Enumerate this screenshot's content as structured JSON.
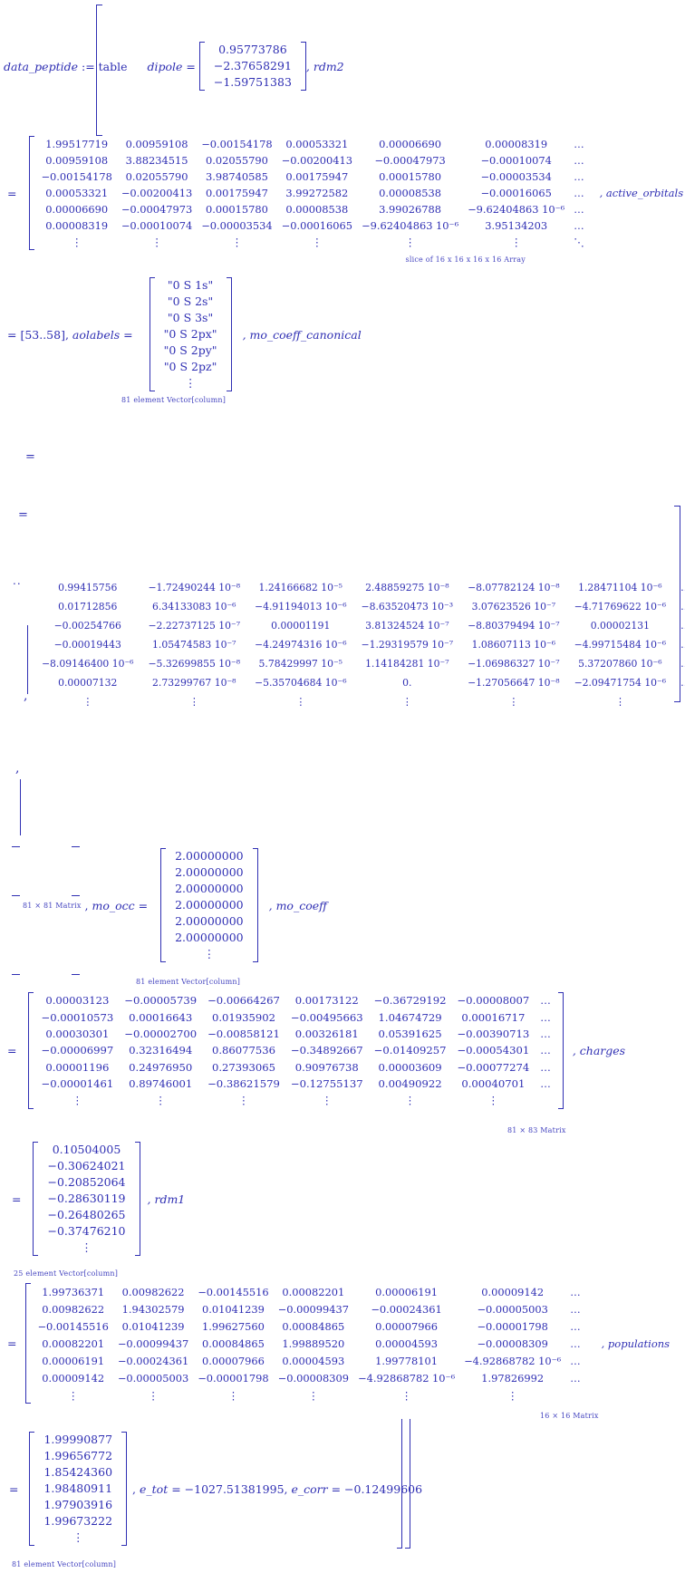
{
  "colors": {
    "ink": "#2f2fb3",
    "caption": "#4646c0"
  },
  "deco": {
    "eq": "=",
    "comma": ",",
    "lead_dots": ".."
  },
  "header": {
    "name": "data_peptide",
    "assign": " := table"
  },
  "dipole": {
    "label": "dipole = ",
    "values": [
      [
        "0.95773786"
      ],
      [
        "−2.37658291"
      ],
      [
        "−1.59751383"
      ]
    ],
    "after": ", rdm2"
  },
  "rdm2_slice": {
    "rows": [
      [
        "1.99517719",
        "0.00959108",
        "−0.00154178",
        "0.00053321",
        "0.00006690",
        "0.00008319",
        "…"
      ],
      [
        "0.00959108",
        "3.88234515",
        "0.02055790",
        "−0.00200413",
        "−0.00047973",
        "−0.00010074",
        "…"
      ],
      [
        "−0.00154178",
        "0.02055790",
        "3.98740585",
        "0.00175947",
        "0.00015780",
        "−0.00003534",
        "…"
      ],
      [
        "0.00053321",
        "−0.00200413",
        "0.00175947",
        "3.99272582",
        "0.00008538",
        "−0.00016065",
        "…"
      ],
      [
        "0.00006690",
        "−0.00047973",
        "0.00015780",
        "0.00008538",
        "3.99026788",
        "−9.62404863 10⁻⁶",
        "…"
      ],
      [
        "0.00008319",
        "−0.00010074",
        "−0.00003534",
        "−0.00016065",
        "−9.62404863 10⁻⁶",
        "3.95134203",
        "…"
      ],
      [
        "⋮",
        "⋮",
        "⋮",
        "⋮",
        "⋮",
        "⋮",
        "⋱"
      ]
    ],
    "label": ", active_orbitals",
    "caption": "slice of 16 x 16 x 16 x 16 Array"
  },
  "aolabels": {
    "prefix": "= [53..58], ",
    "name": "aolabels",
    "eq": " = ",
    "values": [
      [
        "\"0 S 1s\""
      ],
      [
        "\"0 S 2s\""
      ],
      [
        "\"0 S 3s\""
      ],
      [
        "\"0 S 2px\""
      ],
      [
        "\"0 S 2py\""
      ],
      [
        "\"0 S 2pz\""
      ],
      [
        "⋮"
      ]
    ],
    "caption": "81 element Vector[column]",
    "after": ", mo_coeff_canonical"
  },
  "mo_coeff_canonical": {
    "rows": [
      [
        "0.99415756",
        "−1.72490244 10⁻⁸",
        "1.24166682 10⁻⁵",
        "2.48859275 10⁻⁸",
        "−8.07782124 10⁻⁸",
        "1.28471104 10⁻⁶",
        "…"
      ],
      [
        "0.01712856",
        "6.34133083 10⁻⁶",
        "−4.91194013 10⁻⁶",
        "−8.63520473 10⁻³",
        "3.07623526 10⁻⁷",
        "−4.71769622 10⁻⁶",
        "…"
      ],
      [
        "−0.00254766",
        "−2.22737125 10⁻⁷",
        "0.00001191",
        "3.81324524 10⁻⁷",
        "−8.80379494 10⁻⁷",
        "0.00002131",
        "…"
      ],
      [
        "−0.00019443",
        "1.05474583 10⁻⁷",
        "−4.24974316 10⁻⁶",
        "−1.29319579 10⁻⁷",
        "1.08607113 10⁻⁶",
        "−4.99715484 10⁻⁶",
        "…"
      ],
      [
        "−8.09146400 10⁻⁶",
        "−5.32699855 10⁻⁸",
        "5.78429997 10⁻⁵",
        "1.14184281 10⁻⁷",
        "−1.06986327 10⁻⁷",
        "5.37207860 10⁻⁶",
        "…"
      ],
      [
        "0.00007132",
        "2.73299767 10⁻⁸",
        "−5.35704684 10⁻⁶",
        "0.",
        "−1.27056647 10⁻⁸",
        "−2.09471754 10⁻⁶",
        "…"
      ],
      [
        "⋮",
        "⋮",
        "⋮",
        "⋮",
        "⋮",
        "⋮",
        ""
      ]
    ]
  },
  "mo_occ": {
    "size_caption": "81 × 81 Matrix",
    "pre": " , ",
    "name": "mo_occ",
    "eq": " = ",
    "values": [
      [
        "2.00000000"
      ],
      [
        "2.00000000"
      ],
      [
        "2.00000000"
      ],
      [
        "2.00000000"
      ],
      [
        "2.00000000"
      ],
      [
        "2.00000000"
      ],
      [
        "⋮"
      ]
    ],
    "caption": "81 element Vector[column]",
    "after": ", mo_coeff"
  },
  "charges": {
    "rows": [
      [
        "0.00003123",
        "−0.00005739",
        "−0.00664267",
        "0.00173122",
        "−0.36729192",
        "−0.00008007",
        "…"
      ],
      [
        "−0.00010573",
        "0.00016643",
        "0.01935902",
        "−0.00495663",
        "1.04674729",
        "0.00016717",
        "…"
      ],
      [
        "0.00030301",
        "−0.00002700",
        "−0.00858121",
        "0.00326181",
        "0.05391625",
        "−0.00390713",
        "…"
      ],
      [
        "−0.00006997",
        "0.32316494",
        "0.86077536",
        "−0.34892667",
        "−0.01409257",
        "−0.00054301",
        "…"
      ],
      [
        "0.00001196",
        "0.24976950",
        "0.27393065",
        "0.90976738",
        "0.00003609",
        "−0.00077274",
        "…"
      ],
      [
        "−0.00001461",
        "0.89746001",
        "−0.38621579",
        "−0.12755137",
        "0.00490922",
        "0.00040701",
        "…"
      ],
      [
        "⋮",
        "⋮",
        "⋮",
        "⋮",
        "⋮",
        "⋮",
        ""
      ]
    ],
    "label": ", charges",
    "caption": "81 × 83 Matrix"
  },
  "rdm1": {
    "values": [
      [
        "0.10504005"
      ],
      [
        "−0.30624021"
      ],
      [
        "−0.20852064"
      ],
      [
        "−0.28630119"
      ],
      [
        "−0.26480265"
      ],
      [
        "−0.37476210"
      ],
      [
        "⋮"
      ]
    ],
    "label": ", rdm1",
    "caption": "25 element Vector[column]"
  },
  "populations": {
    "rows": [
      [
        "1.99736371",
        "0.00982622",
        "−0.00145516",
        "0.00082201",
        "0.00006191",
        "0.00009142",
        "…"
      ],
      [
        "0.00982622",
        "1.94302579",
        "0.01041239",
        "−0.00099437",
        "−0.00024361",
        "−0.00005003",
        "…"
      ],
      [
        "−0.00145516",
        "0.01041239",
        "1.99627560",
        "0.00084865",
        "0.00007966",
        "−0.00001798",
        "…"
      ],
      [
        "0.00082201",
        "−0.00099437",
        "0.00084865",
        "1.99889520",
        "0.00004593",
        "−0.00008309",
        "…"
      ],
      [
        "0.00006191",
        "−0.00024361",
        "0.00007966",
        "0.00004593",
        "1.99778101",
        "−4.92868782 10⁻⁶",
        "…"
      ],
      [
        "0.00009142",
        "−0.00005003",
        "−0.00001798",
        "−0.00008309",
        "−4.92868782 10⁻⁶",
        "1.97826992",
        "…"
      ],
      [
        "⋮",
        "⋮",
        "⋮",
        "⋮",
        "⋮",
        "⋮",
        ""
      ]
    ],
    "label": ", populations",
    "caption": "16 × 16 Matrix"
  },
  "final": {
    "values": [
      [
        "1.99990877"
      ],
      [
        "1.99656772"
      ],
      [
        "1.85424360"
      ],
      [
        "1.98480911"
      ],
      [
        "1.97903916"
      ],
      [
        "1.99673222"
      ],
      [
        "⋮"
      ]
    ],
    "sep1": ", ",
    "etot_name": "e_tot",
    "etot_value": " = −1027.51381995, ",
    "ecorr_name": "e_corr",
    "ecorr_value": " = −0.12499606",
    "caption": "81 element Vector[column]"
  }
}
